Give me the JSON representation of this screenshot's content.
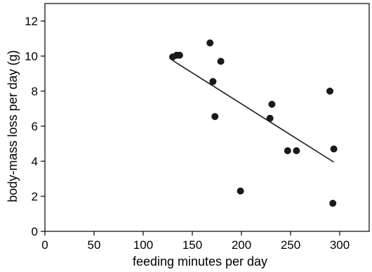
{
  "chart_data": {
    "type": "scatter",
    "title": "",
    "xlabel": "feeding minutes per day",
    "ylabel": "body-mass loss per day (g)",
    "xlim": [
      0,
      330
    ],
    "ylim": [
      0,
      13
    ],
    "x_ticks": [
      0,
      50,
      100,
      150,
      200,
      250,
      300
    ],
    "y_ticks": [
      0,
      2,
      4,
      6,
      8,
      10,
      12
    ],
    "x_tick_labels": [
      "0",
      "50",
      "100",
      "150",
      "200",
      "250",
      "300"
    ],
    "y_tick_labels": [
      "0",
      "2",
      "4",
      "6",
      "8",
      "10",
      "12"
    ],
    "grid": false,
    "legend": "none",
    "colors": {
      "marker": "#1a1a1a",
      "line": "#1a1a1a",
      "axis": "#000000"
    },
    "points": [
      {
        "x": 130,
        "y": 9.95
      },
      {
        "x": 134,
        "y": 10.05
      },
      {
        "x": 137,
        "y": 10.05
      },
      {
        "x": 168,
        "y": 10.75
      },
      {
        "x": 171,
        "y": 8.55
      },
      {
        "x": 173,
        "y": 6.55
      },
      {
        "x": 179,
        "y": 9.7
      },
      {
        "x": 199,
        "y": 2.3
      },
      {
        "x": 229,
        "y": 6.45
      },
      {
        "x": 231,
        "y": 7.25
      },
      {
        "x": 247,
        "y": 4.6
      },
      {
        "x": 256,
        "y": 4.6
      },
      {
        "x": 290,
        "y": 8.0
      },
      {
        "x": 293,
        "y": 1.6
      },
      {
        "x": 294,
        "y": 4.7
      }
    ],
    "trendline": {
      "x": [
        130,
        294
      ],
      "y": [
        9.75,
        3.95
      ]
    }
  }
}
